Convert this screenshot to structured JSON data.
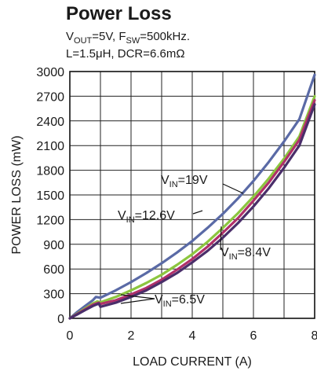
{
  "chart_data": {
    "type": "line",
    "title": "Power Loss",
    "subtitle_line1_parts": [
      "V",
      "OUT",
      "=5V, F",
      "SW",
      "=500kHz."
    ],
    "subtitle_line2": "L=1.5μH, DCR=6.6mΩ",
    "xlabel": "LOAD CURRENT (A)",
    "ylabel": "POWER LOSS (mW)",
    "xlim": [
      0,
      8
    ],
    "ylim": [
      0,
      3000
    ],
    "xticks": [
      0,
      2,
      4,
      6,
      8
    ],
    "yticks": [
      0,
      300,
      600,
      900,
      1200,
      1500,
      1800,
      2100,
      2400,
      2700,
      3000
    ],
    "grid": true,
    "series": [
      {
        "name": "VIN=19V",
        "color": "#5a6aa6",
        "x": [
          0,
          0.25,
          0.5,
          0.75,
          0.85,
          1.0,
          1.5,
          2.0,
          2.5,
          3.0,
          3.5,
          4.0,
          4.5,
          5.0,
          5.5,
          6.0,
          6.5,
          7.0,
          7.5,
          8.0
        ],
        "y": [
          0,
          80,
          150,
          220,
          260,
          250,
          340,
          440,
          550,
          670,
          800,
          940,
          1100,
          1270,
          1460,
          1670,
          1900,
          2150,
          2420,
          2960
        ]
      },
      {
        "name": "VIN=12.6V",
        "color": "#8cc63f",
        "x": [
          0,
          0.25,
          0.5,
          0.75,
          0.9,
          1.0,
          1.5,
          2.0,
          2.5,
          3.0,
          3.5,
          4.0,
          4.5,
          5.0,
          5.5,
          6.0,
          6.5,
          7.0,
          7.5,
          8.0
        ],
        "y": [
          0,
          60,
          120,
          180,
          205,
          195,
          260,
          340,
          430,
          530,
          650,
          780,
          930,
          1100,
          1280,
          1480,
          1700,
          1940,
          2210,
          2700
        ]
      },
      {
        "name": "VIN=8.4V",
        "color": "#b0306a",
        "x": [
          0,
          0.25,
          0.5,
          0.75,
          0.95,
          1.0,
          1.5,
          2.0,
          2.5,
          3.0,
          3.5,
          4.0,
          4.5,
          5.0,
          5.5,
          6.0,
          6.5,
          7.0,
          7.5,
          8.0
        ],
        "y": [
          0,
          55,
          110,
          165,
          190,
          175,
          220,
          290,
          370,
          470,
          590,
          720,
          870,
          1040,
          1220,
          1430,
          1650,
          1900,
          2170,
          2650
        ]
      },
      {
        "name": "VIN=6.5V",
        "color": "#4a2e6a",
        "x": [
          0,
          0.25,
          0.5,
          0.75,
          0.95,
          1.0,
          1.5,
          2.0,
          2.5,
          3.0,
          3.5,
          4.0,
          4.5,
          5.0,
          5.5,
          6.0,
          6.5,
          7.0,
          7.5,
          8.0
        ],
        "y": [
          0,
          50,
          100,
          150,
          180,
          140,
          190,
          260,
          340,
          440,
          550,
          680,
          820,
          980,
          1160,
          1360,
          1580,
          1830,
          2100,
          2600
        ]
      }
    ],
    "annotations": [
      {
        "main": "V",
        "sub": "IN",
        "rest": "=19V"
      },
      {
        "main": "V",
        "sub": "IN",
        "rest": "=12.6V"
      },
      {
        "main": "V",
        "sub": "IN",
        "rest": "=8.4V"
      },
      {
        "main": "V",
        "sub": "IN",
        "rest": "=6.5V"
      }
    ]
  }
}
